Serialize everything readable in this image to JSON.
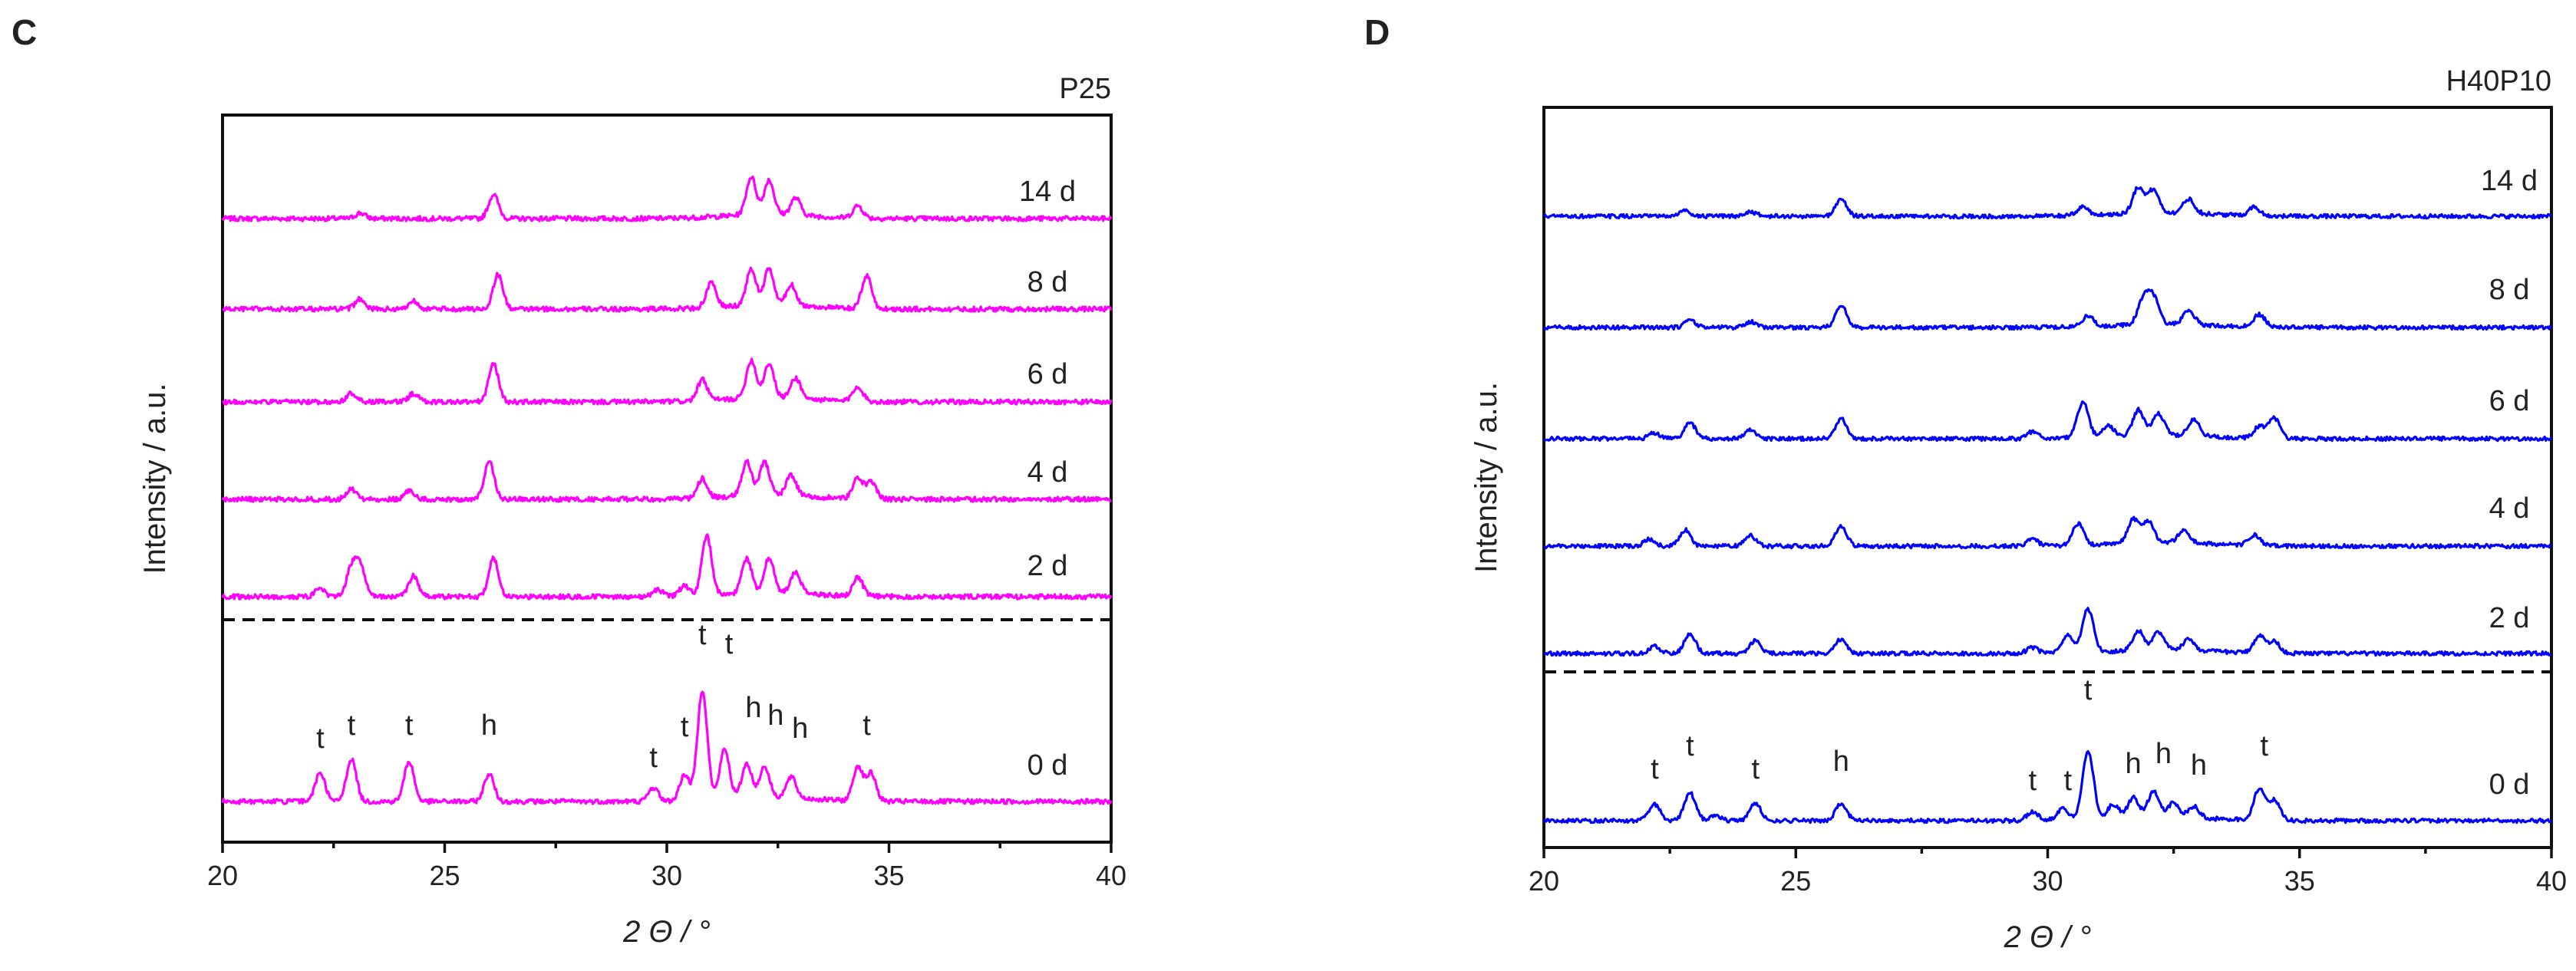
{
  "chart_data": [
    {
      "type": "line",
      "panel_label": "C",
      "title": "P25",
      "xlabel": "2 Θ / °",
      "ylabel": "Intensity / a.u.",
      "xlim": [
        20,
        40
      ],
      "xticks": [
        20,
        25,
        30,
        35,
        40
      ],
      "line_color": "#ff00ff",
      "series": [
        {
          "name": "14 d",
          "peaks": [
            [
              23.1,
              0.08
            ],
            [
              26.1,
              0.35
            ],
            [
              31.9,
              0.55
            ],
            [
              32.3,
              0.5
            ],
            [
              32.9,
              0.25
            ],
            [
              34.3,
              0.18
            ]
          ]
        },
        {
          "name": "8 d",
          "peaks": [
            [
              23.1,
              0.15
            ],
            [
              24.3,
              0.12
            ],
            [
              26.2,
              0.5
            ],
            [
              31.0,
              0.35
            ],
            [
              31.9,
              0.52
            ],
            [
              32.3,
              0.52
            ],
            [
              32.8,
              0.3
            ],
            [
              34.5,
              0.48
            ]
          ]
        },
        {
          "name": "6 d",
          "peaks": [
            [
              22.9,
              0.12
            ],
            [
              24.3,
              0.12
            ],
            [
              26.1,
              0.55
            ],
            [
              30.8,
              0.3
            ],
            [
              31.9,
              0.55
            ],
            [
              32.3,
              0.5
            ],
            [
              32.9,
              0.3
            ],
            [
              34.3,
              0.22
            ]
          ]
        },
        {
          "name": "4 d",
          "peaks": [
            [
              22.9,
              0.15
            ],
            [
              24.2,
              0.12
            ],
            [
              26.0,
              0.55
            ],
            [
              30.8,
              0.28
            ],
            [
              31.8,
              0.5
            ],
            [
              32.2,
              0.48
            ],
            [
              32.8,
              0.3
            ],
            [
              34.3,
              0.3
            ],
            [
              34.6,
              0.25
            ]
          ]
        },
        {
          "name": "2 d",
          "peaks": [
            [
              22.2,
              0.12
            ],
            [
              22.9,
              0.4
            ],
            [
              23.1,
              0.45
            ],
            [
              24.3,
              0.3
            ],
            [
              26.1,
              0.55
            ],
            [
              29.8,
              0.1
            ],
            [
              30.4,
              0.15
            ],
            [
              30.9,
              0.85
            ],
            [
              31.8,
              0.5
            ],
            [
              32.3,
              0.5
            ],
            [
              32.9,
              0.3
            ],
            [
              34.3,
              0.28
            ]
          ]
        },
        {
          "name": "0 d",
          "peaks": [
            [
              22.2,
              0.42
            ],
            [
              22.9,
              0.62
            ],
            [
              24.2,
              0.58
            ],
            [
              26.0,
              0.4
            ],
            [
              29.7,
              0.2
            ],
            [
              30.4,
              0.38
            ],
            [
              30.8,
              1.6
            ],
            [
              31.3,
              0.72
            ],
            [
              31.8,
              0.5
            ],
            [
              32.2,
              0.45
            ],
            [
              32.8,
              0.3
            ],
            [
              34.3,
              0.5
            ],
            [
              34.6,
              0.4
            ]
          ]
        }
      ],
      "annotations": [
        {
          "text": "t",
          "x": 22.2
        },
        {
          "text": "t",
          "x": 22.9
        },
        {
          "text": "t",
          "x": 24.2
        },
        {
          "text": "h",
          "x": 26.0
        },
        {
          "text": "t",
          "x": 29.7
        },
        {
          "text": "t",
          "x": 30.4
        },
        {
          "text": "t",
          "x": 30.8
        },
        {
          "text": "t",
          "x": 31.4
        },
        {
          "text": "h",
          "x": 31.95
        },
        {
          "text": "h",
          "x": 32.45
        },
        {
          "text": "h",
          "x": 33.0
        },
        {
          "text": "t",
          "x": 34.5
        }
      ]
    },
    {
      "type": "line",
      "panel_label": "D",
      "title": "H40P10",
      "xlabel": "2 Θ / °",
      "ylabel": "Intensity / a.u.",
      "xlim": [
        20,
        40
      ],
      "xticks": [
        20,
        25,
        30,
        35,
        40
      ],
      "line_color": "#0000ff",
      "series": [
        {
          "name": "14 d",
          "peaks": [
            [
              22.8,
              0.1
            ],
            [
              24.1,
              0.08
            ],
            [
              25.9,
              0.3
            ],
            [
              30.7,
              0.15
            ],
            [
              31.8,
              0.45
            ],
            [
              32.1,
              0.4
            ],
            [
              32.8,
              0.25
            ],
            [
              34.1,
              0.15
            ]
          ]
        },
        {
          "name": "8 d",
          "peaks": [
            [
              22.9,
              0.12
            ],
            [
              24.1,
              0.1
            ],
            [
              25.9,
              0.38
            ],
            [
              30.8,
              0.18
            ],
            [
              31.9,
              0.42
            ],
            [
              32.1,
              0.45
            ],
            [
              32.8,
              0.25
            ],
            [
              34.2,
              0.22
            ]
          ]
        },
        {
          "name": "6 d",
          "peaks": [
            [
              22.2,
              0.1
            ],
            [
              22.9,
              0.28
            ],
            [
              24.1,
              0.15
            ],
            [
              25.9,
              0.35
            ],
            [
              29.7,
              0.12
            ],
            [
              30.7,
              0.62
            ],
            [
              31.2,
              0.2
            ],
            [
              31.8,
              0.45
            ],
            [
              32.2,
              0.38
            ],
            [
              32.9,
              0.28
            ],
            [
              34.2,
              0.2
            ],
            [
              34.5,
              0.35
            ]
          ]
        },
        {
          "name": "4 d",
          "peaks": [
            [
              22.1,
              0.12
            ],
            [
              22.8,
              0.28
            ],
            [
              24.1,
              0.18
            ],
            [
              25.9,
              0.35
            ],
            [
              29.7,
              0.12
            ],
            [
              30.6,
              0.38
            ],
            [
              31.7,
              0.42
            ],
            [
              32.0,
              0.38
            ],
            [
              32.7,
              0.22
            ],
            [
              34.1,
              0.18
            ]
          ]
        },
        {
          "name": "2 d",
          "peaks": [
            [
              22.2,
              0.12
            ],
            [
              22.9,
              0.35
            ],
            [
              24.2,
              0.22
            ],
            [
              25.9,
              0.25
            ],
            [
              29.7,
              0.1
            ],
            [
              30.4,
              0.3
            ],
            [
              30.8,
              0.75
            ],
            [
              31.8,
              0.35
            ],
            [
              32.2,
              0.32
            ],
            [
              32.8,
              0.2
            ],
            [
              34.2,
              0.3
            ],
            [
              34.5,
              0.2
            ]
          ]
        },
        {
          "name": "0 d",
          "peaks": [
            [
              22.2,
              0.28
            ],
            [
              22.9,
              0.48
            ],
            [
              23.4,
              0.1
            ],
            [
              24.2,
              0.3
            ],
            [
              25.9,
              0.3
            ],
            [
              29.7,
              0.15
            ],
            [
              30.3,
              0.2
            ],
            [
              30.8,
              1.2
            ],
            [
              31.3,
              0.25
            ],
            [
              31.7,
              0.35
            ],
            [
              32.1,
              0.45
            ],
            [
              32.5,
              0.25
            ],
            [
              32.9,
              0.2
            ],
            [
              34.2,
              0.55
            ],
            [
              34.5,
              0.35
            ]
          ]
        }
      ],
      "annotations": [
        {
          "text": "t",
          "x": 22.2
        },
        {
          "text": "t",
          "x": 22.9
        },
        {
          "text": "t",
          "x": 24.2
        },
        {
          "text": "h",
          "x": 25.9
        },
        {
          "text": "t",
          "x": 29.7
        },
        {
          "text": "t",
          "x": 30.4
        },
        {
          "text": "t",
          "x": 30.8
        },
        {
          "text": "h",
          "x": 31.7
        },
        {
          "text": "h",
          "x": 32.3
        },
        {
          "text": "h",
          "x": 33.0
        },
        {
          "text": "t",
          "x": 34.3
        }
      ]
    }
  ]
}
